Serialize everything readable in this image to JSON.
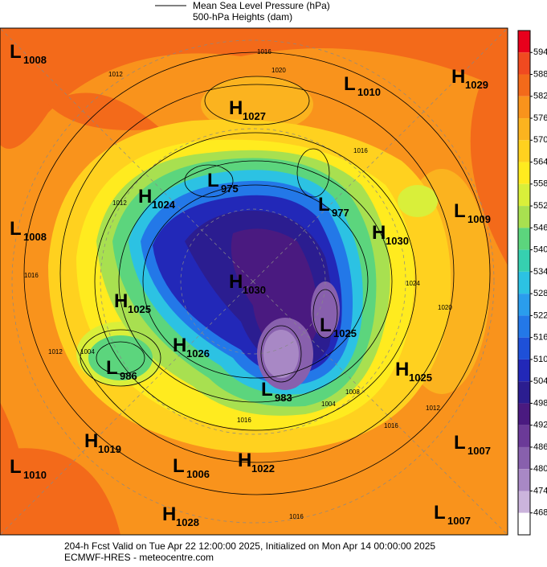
{
  "legend": {
    "labels": [
      "Mean Sea Level Pressure (hPa)",
      "500-hPa Heights (dam)"
    ]
  },
  "colorbar": {
    "ticks": [
      594,
      588,
      582,
      576,
      570,
      564,
      558,
      552,
      546,
      540,
      534,
      528,
      522,
      516,
      510,
      504,
      498,
      492,
      486,
      480,
      474,
      468
    ],
    "colors": [
      "#e8001c",
      "#f04a20",
      "#f36a1a",
      "#f9931c",
      "#fbb31f",
      "#ffd11f",
      "#ffeb1f",
      "#d9ef3a",
      "#a8e050",
      "#5cd57d",
      "#36d0b0",
      "#2cc2e3",
      "#2a9ded",
      "#2378e8",
      "#1e50d8",
      "#2228b8",
      "#2b1d90",
      "#4a1a80",
      "#6b3a98",
      "#8860ad",
      "#a888c5",
      "#cbb4dc",
      "#ffffff"
    ]
  },
  "centers": [
    {
      "type": "L",
      "value": 1008
    },
    {
      "type": "L",
      "value": 1010
    },
    {
      "type": "H",
      "value": 1029
    },
    {
      "type": "H",
      "value": 1027
    },
    {
      "type": "L",
      "value": 975
    },
    {
      "type": "H",
      "value": 1024
    },
    {
      "type": "L",
      "value": 977
    },
    {
      "type": "L",
      "value": 1009
    },
    {
      "type": "L",
      "value": 1008
    },
    {
      "type": "H",
      "value": 1030
    },
    {
      "type": "H",
      "value": 1030
    },
    {
      "type": "H",
      "value": 1025
    },
    {
      "type": "L",
      "value": 1025
    },
    {
      "type": "H",
      "value": 1026
    },
    {
      "type": "L",
      "value": 986
    },
    {
      "type": "H",
      "value": 1025
    },
    {
      "type": "L",
      "value": 983
    },
    {
      "type": "H",
      "value": 1019
    },
    {
      "type": "L",
      "value": 1010
    },
    {
      "type": "L",
      "value": 1006
    },
    {
      "type": "H",
      "value": 1022
    },
    {
      "type": "L",
      "value": 1007
    },
    {
      "type": "H",
      "value": 1028
    },
    {
      "type": "L",
      "value": 1007
    }
  ],
  "isobar_labels": [
    1016,
    1020,
    1012,
    1016,
    1012,
    1016,
    1004,
    1012,
    1020,
    1024,
    1016,
    1012,
    1008,
    1004,
    1016,
    1016
  ],
  "footer": {
    "lines": [
      "204-h Fcst Valid on Tue Apr 22 12:00:00 2025, Initialized on Mon Apr 14 00:00:00 2025",
      "ECMWF-HRES  - meteocentre.com"
    ]
  }
}
